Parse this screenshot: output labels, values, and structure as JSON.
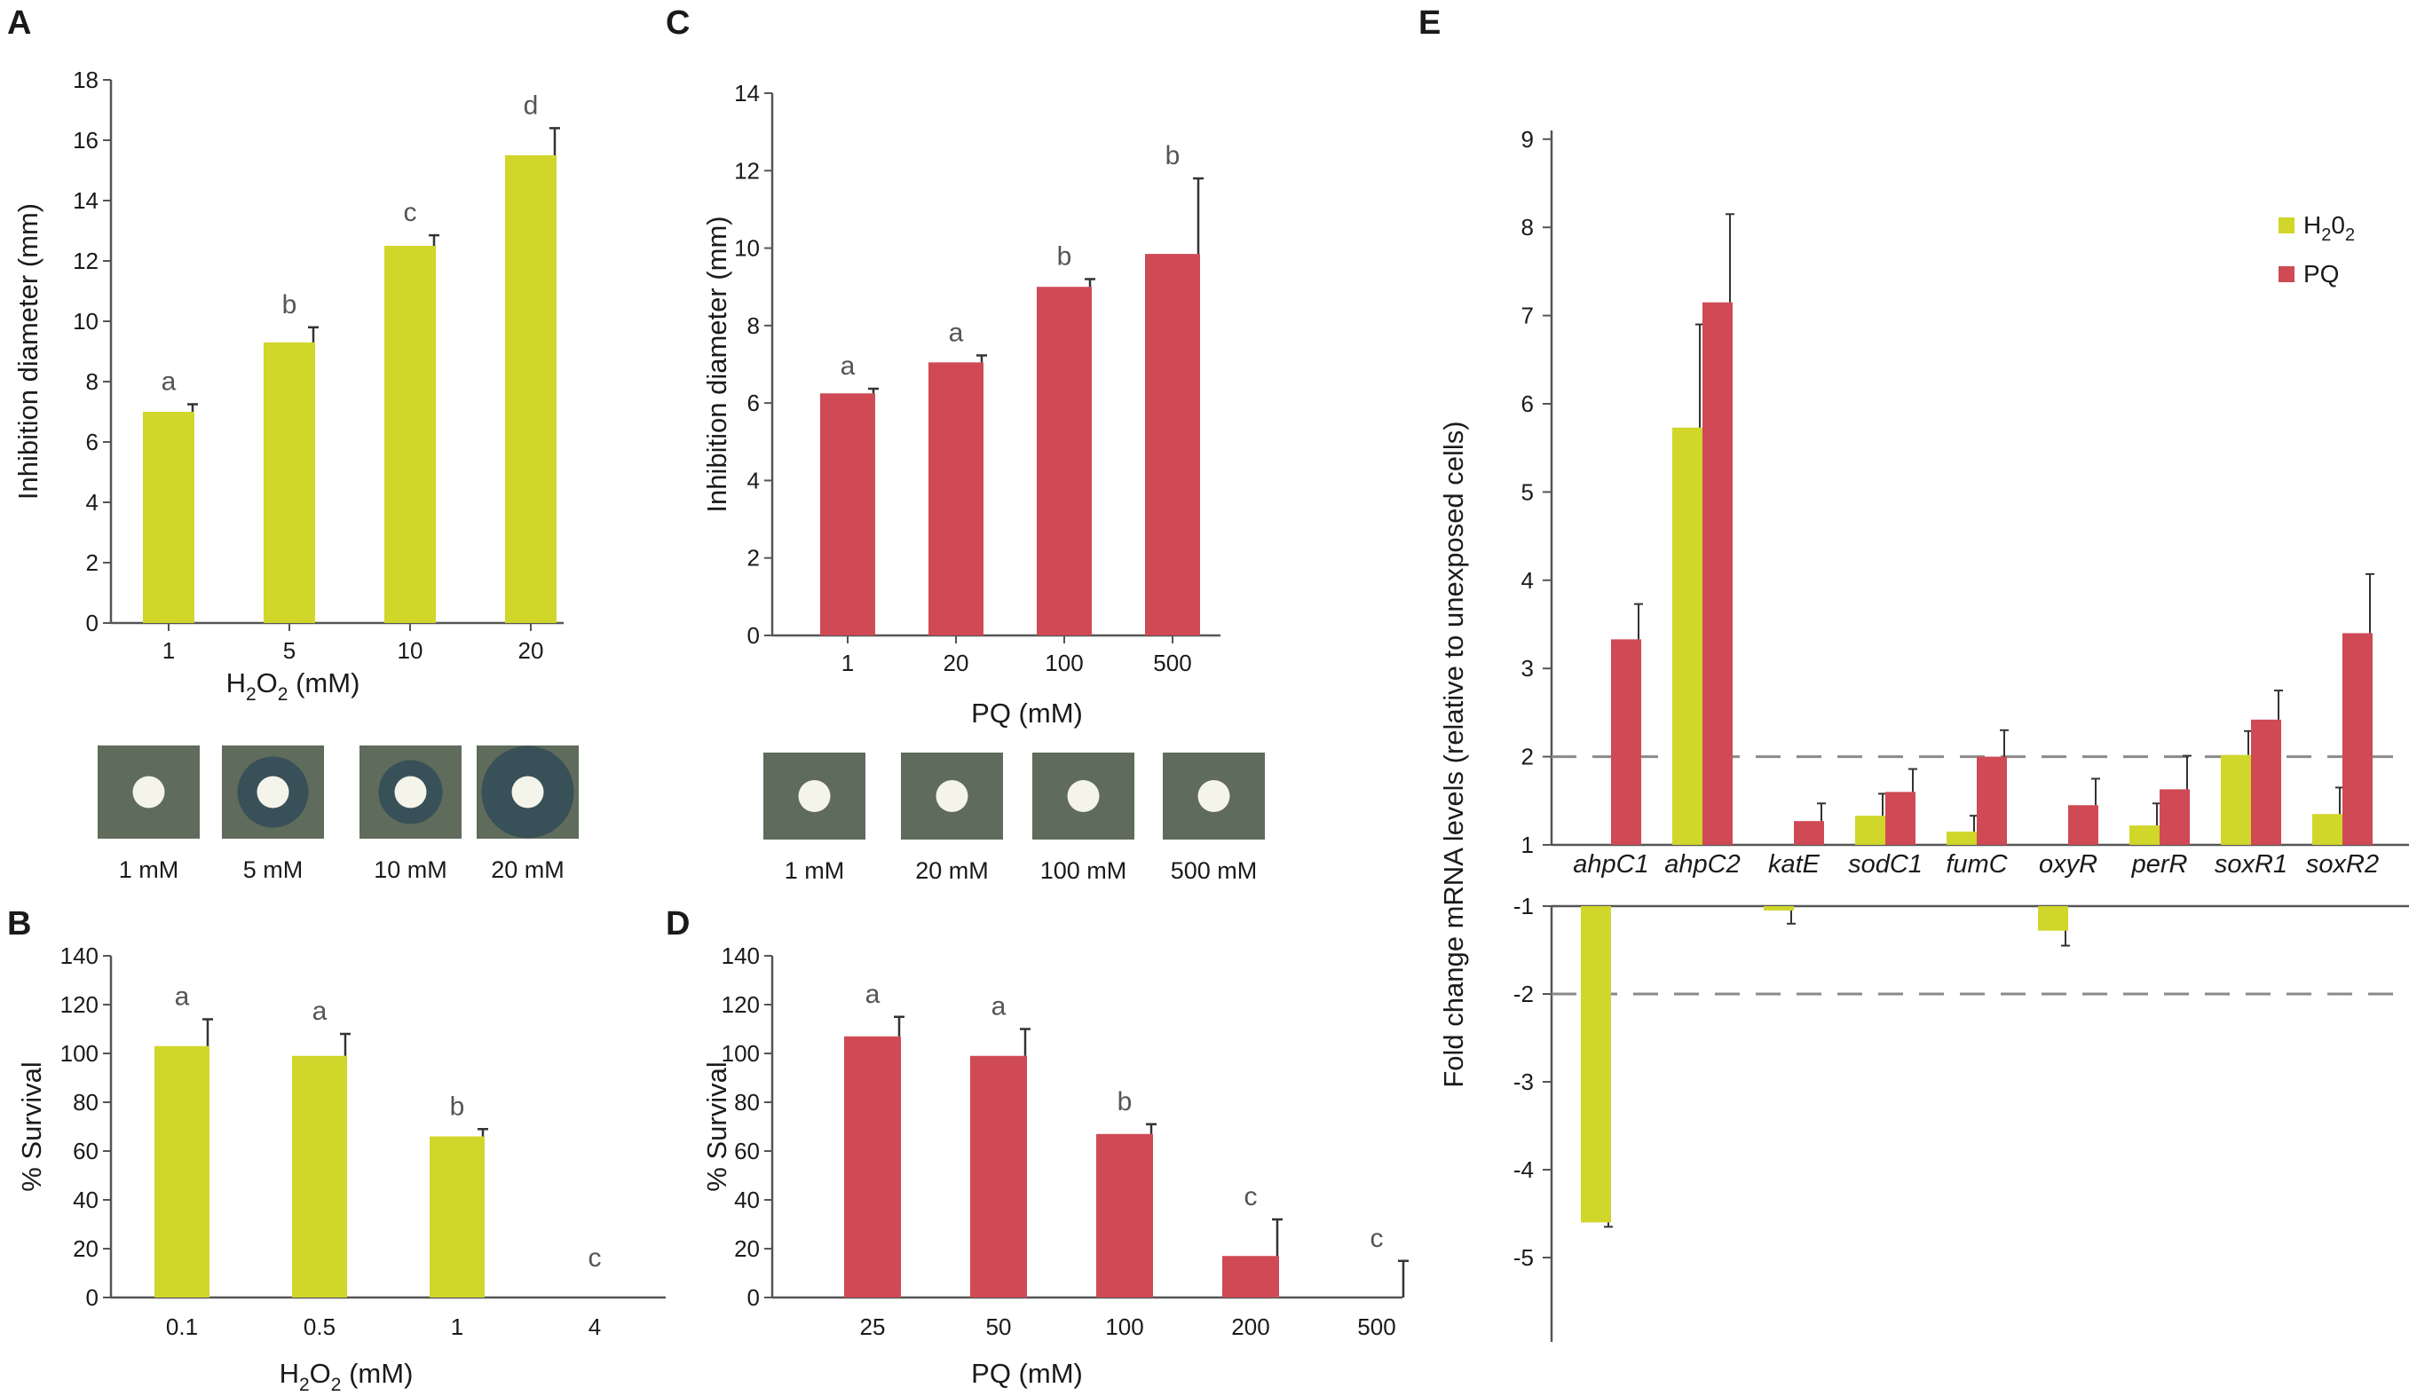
{
  "colors": {
    "h2o2": "#d0d62a",
    "pq": "#cf4a55",
    "axis": "#555555",
    "errorbar": "#333333",
    "dashed": "#8a8a8a",
    "plate_bg": "#5f6b5b"
  },
  "panels": {
    "A": {
      "letter": "A",
      "xlabel_main": "H",
      "xlabel_sub1": "2",
      "xlabel_mid": "O",
      "xlabel_sub2": "2",
      "xlabel_tail": " (mM)",
      "plate_labels": [
        "1 mM",
        "5 mM",
        "10 mM",
        "20 mM"
      ]
    },
    "B": {
      "letter": "B",
      "xlabel_main": "H",
      "xlabel_sub1": "2",
      "xlabel_mid": "O",
      "xlabel_sub2": "2",
      "xlabel_tail": " (mM)"
    },
    "C": {
      "letter": "C",
      "plate_labels": [
        "1 mM",
        "20 mM",
        "100 mM",
        "500 mM"
      ]
    },
    "D": {
      "letter": "D"
    },
    "E": {
      "letter": "E"
    }
  },
  "chart_data": [
    {
      "id": "A",
      "type": "bar",
      "color_key": "h2o2",
      "categories": [
        "1",
        "5",
        "10",
        "20"
      ],
      "values": [
        7.0,
        9.3,
        12.5,
        15.5
      ],
      "errors": [
        0.25,
        0.5,
        0.35,
        0.9
      ],
      "sig_labels": [
        "a",
        "b",
        "c",
        "d"
      ],
      "ylabel": "Inhibition diameter (mm)",
      "xlabel": "H2O2 (mM)",
      "ylim": [
        0,
        18
      ],
      "yticks": [
        0,
        2,
        4,
        6,
        8,
        10,
        12,
        14,
        16,
        18
      ]
    },
    {
      "id": "B",
      "type": "bar",
      "color_key": "h2o2",
      "categories": [
        "0.1",
        "0.5",
        "1",
        "4"
      ],
      "values": [
        103,
        99,
        66,
        0
      ],
      "errors": [
        11,
        9,
        3,
        0
      ],
      "sig_labels": [
        "a",
        "a",
        "b",
        "c"
      ],
      "ylabel": "% Survival",
      "xlabel": "H2O2 (mM)",
      "ylim": [
        0,
        140
      ],
      "yticks": [
        0,
        20,
        40,
        60,
        80,
        100,
        120,
        140
      ]
    },
    {
      "id": "C",
      "type": "bar",
      "color_key": "pq",
      "categories": [
        "1",
        "20",
        "100",
        "500"
      ],
      "values": [
        6.25,
        7.05,
        9.0,
        9.85
      ],
      "errors": [
        0.12,
        0.18,
        0.2,
        1.95
      ],
      "sig_labels": [
        "a",
        "a",
        "b",
        "b"
      ],
      "ylabel": "Inhibition diameter (mm)",
      "xlabel": "PQ  (mM)",
      "ylim": [
        0,
        14
      ],
      "yticks": [
        0,
        2,
        4,
        6,
        8,
        10,
        12,
        14
      ]
    },
    {
      "id": "D",
      "type": "bar",
      "color_key": "pq",
      "categories": [
        "25",
        "50",
        "100",
        "200",
        "500"
      ],
      "values": [
        107,
        99,
        67,
        17,
        0
      ],
      "errors": [
        8,
        11,
        4,
        15,
        15
      ],
      "sig_labels": [
        "a",
        "a",
        "b",
        "c",
        "c"
      ],
      "ylabel": "% Survival",
      "xlabel": "PQ  (mM)",
      "ylim": [
        0,
        140
      ],
      "yticks": [
        0,
        20,
        40,
        60,
        80,
        100,
        120,
        140
      ]
    },
    {
      "id": "E",
      "type": "bar",
      "categories": [
        "ahpC1",
        "ahpC2",
        "katE",
        "sodC1",
        "fumC",
        "oxyR",
        "perR",
        "soxR1",
        "soxR2"
      ],
      "series": [
        {
          "name": "H2O2",
          "color_key": "h2o2",
          "values": [
            -4.6,
            5.73,
            -1.05,
            1.33,
            1.15,
            -1.28,
            1.22,
            2.02,
            1.35
          ],
          "errors": [
            0.05,
            1.17,
            0.15,
            0.25,
            0.18,
            0.17,
            0.25,
            0.27,
            0.3
          ]
        },
        {
          "name": "PQ",
          "color_key": "pq",
          "values": [
            3.33,
            7.15,
            1.27,
            1.6,
            2.0,
            1.45,
            1.63,
            2.42,
            3.4
          ],
          "errors": [
            0.4,
            1.0,
            0.2,
            0.26,
            0.3,
            0.3,
            0.38,
            0.33,
            0.67
          ]
        }
      ],
      "ylabel": "Fold change mRNA levels (relative to unexposed cells)",
      "yticks_upper": [
        "9",
        "8",
        "7",
        "6",
        "5",
        "4",
        "3",
        "2",
        "1"
      ],
      "yticks_lower": [
        "-1",
        "-2",
        "-3",
        "-4",
        "-5"
      ],
      "threshold_lines": [
        2,
        -2
      ],
      "legend": [
        {
          "main": "H",
          "sub1": "2",
          "mid": "0",
          "sub2": "2",
          "color_key": "h2o2"
        },
        {
          "main": "PQ",
          "color_key": "pq"
        }
      ]
    }
  ]
}
